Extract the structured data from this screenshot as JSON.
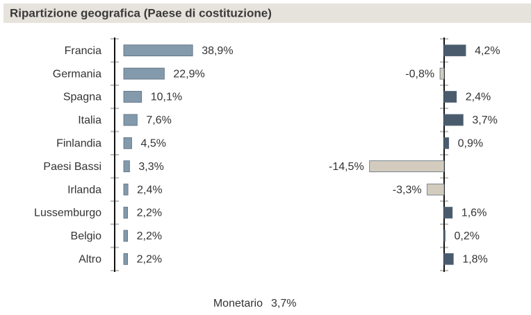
{
  "title": "Ripartizione geografica (Paese di costituzione)",
  "chart_data": [
    {
      "type": "bar",
      "orientation": "horizontal",
      "categories": [
        "Francia",
        "Germania",
        "Spagna",
        "Italia",
        "Finlandia",
        "Paesi Bassi",
        "Irlanda",
        "Lussemburgo",
        "Belgio",
        "Altro"
      ],
      "values": [
        38.9,
        22.9,
        10.1,
        7.6,
        4.5,
        3.3,
        2.4,
        2.2,
        2.2,
        2.2
      ],
      "value_labels": [
        "38,9%",
        "22,9%",
        "10,1%",
        "7,6%",
        "4,5%",
        "3,3%",
        "2,4%",
        "2,2%",
        "2,2%",
        "2,2%"
      ],
      "color": "#8399ac"
    },
    {
      "type": "bar",
      "orientation": "horizontal",
      "values": [
        4.2,
        -0.8,
        2.4,
        3.7,
        0.9,
        -14.5,
        -3.3,
        1.6,
        0.2,
        1.8
      ],
      "value_labels": [
        "4,2%",
        "-0,8%",
        "2,4%",
        "3,7%",
        "0,9%",
        "-14,5%",
        "-3,3%",
        "1,6%",
        "0,2%",
        "1,8%"
      ],
      "color": "#4a5b6d",
      "negative_color": "#d3ccbe"
    }
  ],
  "footer": {
    "label": "Monetario",
    "value": "3,7%"
  }
}
